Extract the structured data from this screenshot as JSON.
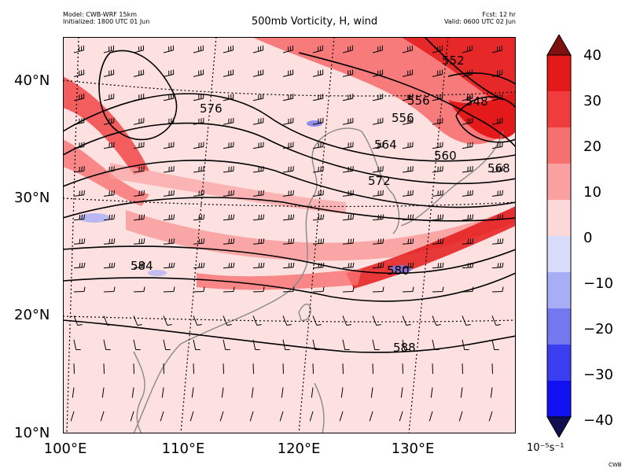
{
  "header": {
    "model": "Model: CWB-WRF 15km",
    "initialized": "Initialized: 1800 UTC 01 Jun",
    "title": "500mb Vorticity, H, wind",
    "forecast": "Fcst: 12 hr",
    "valid": "Valid: 0600 UTC 02 Jun"
  },
  "map": {
    "lat_labels": [
      "40°N",
      "30°N",
      "20°N",
      "10°N"
    ],
    "lon_labels": [
      "100°E",
      "110°E",
      "120°E",
      "130°E"
    ],
    "contour_labels": [
      "552",
      "548",
      "556",
      "556",
      "564",
      "560",
      "568",
      "576",
      "572",
      "584",
      "580",
      "588"
    ]
  },
  "colorbar": {
    "ticks": [
      "40",
      "30",
      "20",
      "10",
      "0",
      "−10",
      "−20",
      "−30",
      "−40"
    ],
    "units": "10⁻⁵s⁻¹",
    "colors": [
      "#7f1010",
      "#e41a1a",
      "#f03c3c",
      "#f77070",
      "#fba0a0",
      "#fdd8d8",
      "#d8dcfa",
      "#a8aef6",
      "#7478ee",
      "#3a3ef0",
      "#1010f0",
      "#101050"
    ]
  },
  "credit": "CWB"
}
